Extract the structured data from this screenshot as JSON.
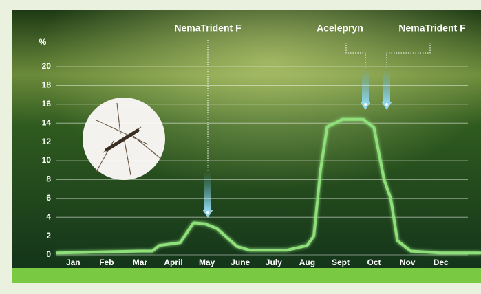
{
  "chart_data": {
    "type": "line",
    "ylabel": "%",
    "x": [
      -0.5,
      2,
      2.37,
      2.58,
      3.2,
      3.6,
      3.94,
      4.3,
      4.9,
      5.27,
      6.4,
      7,
      7.2,
      7.4,
      7.6,
      8.06,
      8.68,
      9,
      9.3,
      9.5,
      9.7,
      10.1,
      10.96,
      12.2
    ],
    "values": [
      0.2,
      0.4,
      0.4,
      1.0,
      1.3,
      3.4,
      3.3,
      2.8,
      0.9,
      0.5,
      0.5,
      1.0,
      2.0,
      9.0,
      13.6,
      14.4,
      14.4,
      13.5,
      8.0,
      6.0,
      1.5,
      0.4,
      0.2,
      0.2
    ],
    "color": "#8fe07a",
    "xlim": [
      -0.5,
      12.2
    ],
    "xticks": [
      {
        "value": 0,
        "label": "Jan"
      },
      {
        "value": 1,
        "label": "Feb"
      },
      {
        "value": 2,
        "label": "Mar"
      },
      {
        "value": 3,
        "label": "April"
      },
      {
        "value": 4,
        "label": "May"
      },
      {
        "value": 5,
        "label": "June"
      },
      {
        "value": 6,
        "label": "July"
      },
      {
        "value": 7,
        "label": "Aug"
      },
      {
        "value": 8,
        "label": "Sept"
      },
      {
        "value": 9,
        "label": "Oct"
      },
      {
        "value": 10,
        "label": "Nov"
      },
      {
        "value": 11,
        "label": "Dec"
      }
    ],
    "ylim": [
      0,
      20
    ],
    "yticks": [
      0,
      2,
      4,
      6,
      8,
      10,
      12,
      14,
      16,
      18,
      20
    ],
    "grid": true,
    "annotations": [
      "NemaTrident F",
      "Acelepryn",
      "NemaTrident F"
    ]
  }
}
